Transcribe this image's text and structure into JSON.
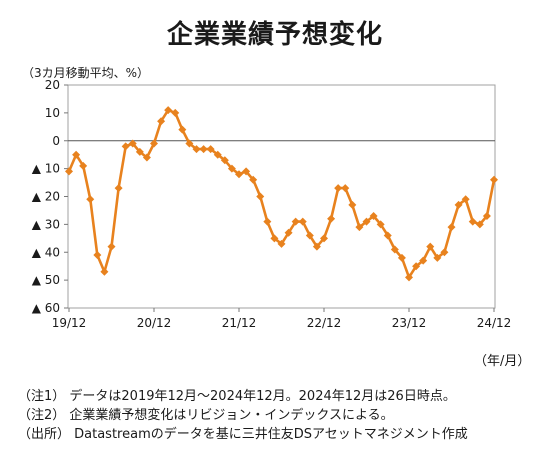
{
  "chart_data": {
    "type": "line",
    "title": "企業業績予想変化",
    "ylabel": "（3カ月移動平均、%）",
    "xlabel": "（年/月）",
    "ylim": [
      -60,
      20
    ],
    "grid": false,
    "y_ticks": [
      20,
      10,
      0,
      -10,
      -20,
      -30,
      -40,
      -50,
      -60
    ],
    "y_tick_labels": [
      "20",
      "10",
      "0",
      "▲ 10",
      "▲ 20",
      "▲ 30",
      "▲ 40",
      "▲ 50",
      "▲ 60"
    ],
    "x_tick_labels": [
      "19/12",
      "20/12",
      "21/12",
      "22/12",
      "23/12",
      "24/12"
    ],
    "series": [
      {
        "color": "#e8821e",
        "values": [
          -11,
          -5,
          -9,
          -21,
          -41,
          -47,
          -38,
          -17,
          -2,
          -1,
          -4,
          -6,
          -1,
          7,
          11,
          10,
          4,
          -1,
          -3,
          -3,
          -3,
          -5,
          -7,
          -10,
          -12,
          -11,
          -14,
          -20,
          -29,
          -35,
          -37,
          -33,
          -29,
          -29,
          -34,
          -38,
          -35,
          -28,
          -17,
          -17,
          -23,
          -31,
          -29,
          -27,
          -30,
          -34,
          -39,
          -42,
          -49,
          -45,
          -43,
          -38,
          -42,
          -40,
          -31,
          -23,
          -21,
          -29,
          -30,
          -27,
          -14
        ]
      }
    ]
  },
  "notes": [
    "（注1） データは2019年12月～2024年12月。2024年12月は26日時点。",
    "（注2） 企業業績予想変化はリビジョン・インデックスによる。",
    "（出所） Datastreamのデータを基に三井住友DSアセットマネジメント作成"
  ]
}
